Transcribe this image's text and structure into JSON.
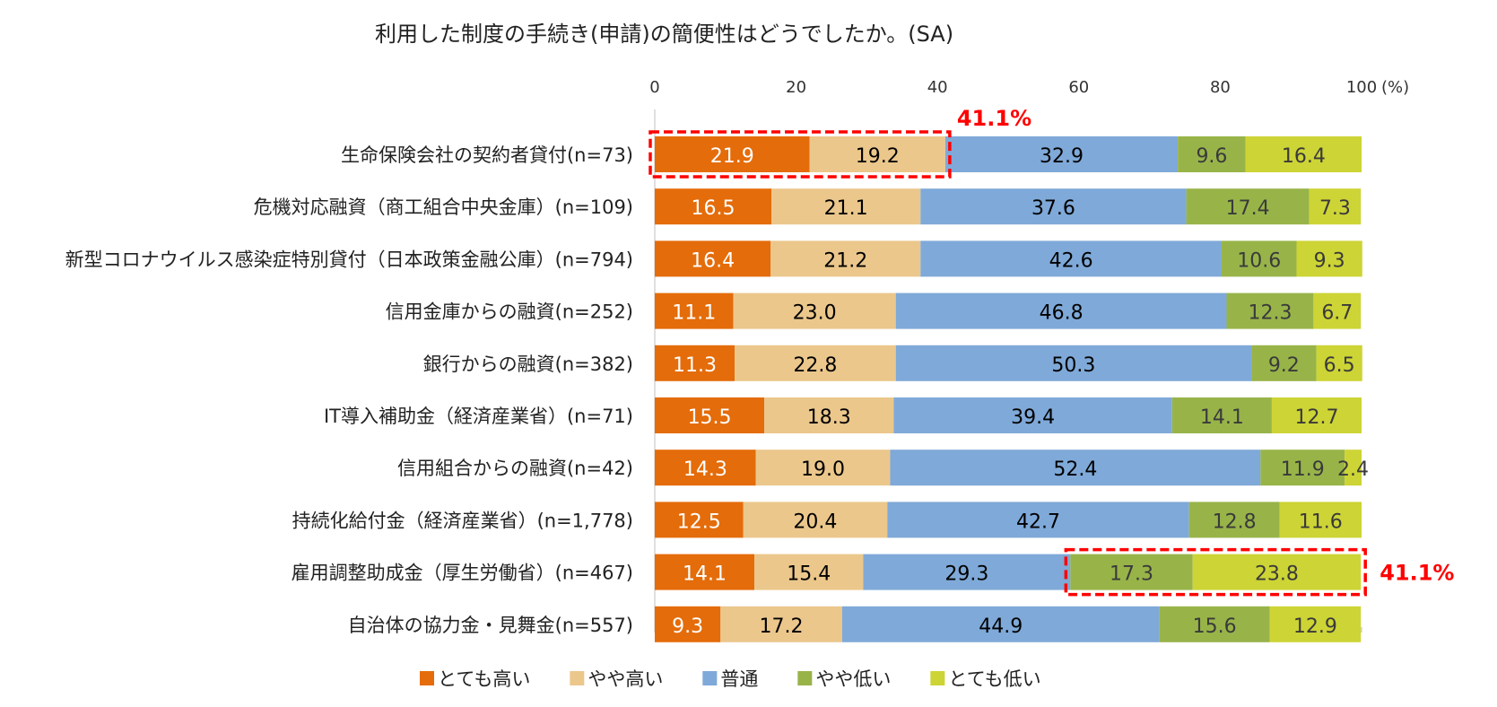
{
  "chart_data": {
    "type": "bar",
    "orientation": "horizontal",
    "stacked": true,
    "title": "利用した制度の手続き(申請)の簡便性はどうでしたか。(SA)",
    "xlim": [
      0,
      100
    ],
    "x_ticks": [
      "0",
      "20",
      "40",
      "60",
      "80",
      "100"
    ],
    "unit_label": "(%)",
    "grid": false,
    "legend_position": "bottom",
    "categories": [
      "生命保険会社の契約者貸付(n=73)",
      "危機対応融資（商工組合中央金庫）(n=109)",
      "新型コロナウイルス感染症特別貸付（日本政策金融公庫）(n=794)",
      "信用金庫からの融資(n=252)",
      "銀行からの融資(n=382)",
      "IT導入補助金（経済産業省）(n=71)",
      "信用組合からの融資(n=42)",
      "持続化給付金（経済産業省）(n=1,778)",
      "雇用調整助成金（厚生労働省）(n=467)",
      "自治体の協力金・見舞金(n=557)"
    ],
    "series": [
      {
        "name": "とても高い",
        "color": "#E46C0A",
        "label_color": "#ffffff",
        "values": [
          21.9,
          16.5,
          16.4,
          11.1,
          11.3,
          15.5,
          14.3,
          12.5,
          14.1,
          9.3
        ]
      },
      {
        "name": "やや高い",
        "color": "#EBC78C",
        "label_color": "#000000",
        "values": [
          19.2,
          21.1,
          21.2,
          23.0,
          22.8,
          18.3,
          19.0,
          20.4,
          15.4,
          17.2
        ]
      },
      {
        "name": "普通",
        "color": "#7FA9D8",
        "label_color": "#000000",
        "values": [
          32.9,
          37.6,
          42.6,
          46.8,
          50.3,
          39.4,
          52.4,
          42.7,
          29.3,
          44.9
        ]
      },
      {
        "name": "やや低い",
        "color": "#98B449",
        "label_color": "#3a3a3a",
        "values": [
          9.6,
          17.4,
          10.6,
          12.3,
          9.2,
          14.1,
          11.9,
          12.8,
          17.3,
          15.6
        ]
      },
      {
        "name": "とても低い",
        "color": "#CDD435",
        "label_color": "#3a3a3a",
        "values": [
          16.4,
          7.3,
          9.3,
          6.7,
          6.5,
          12.7,
          2.4,
          11.6,
          23.8,
          12.9
        ]
      }
    ],
    "value_labels": [
      [
        "21.9",
        "19.2",
        "32.9",
        "9.6",
        "16.4"
      ],
      [
        "16.5",
        "21.1",
        "37.6",
        "17.4",
        "7.3"
      ],
      [
        "16.4",
        "21.2",
        "42.6",
        "10.6",
        "9.3"
      ],
      [
        "11.1",
        "23.0",
        "46.8",
        "12.3",
        "6.7"
      ],
      [
        "11.3",
        "22.8",
        "50.3",
        "9.2",
        "6.5"
      ],
      [
        "15.5",
        "18.3",
        "39.4",
        "14.1",
        "12.7"
      ],
      [
        "14.3",
        "19.0",
        "52.4",
        "11.9",
        "2.4"
      ],
      [
        "12.5",
        "20.4",
        "42.7",
        "12.8",
        "11.6"
      ],
      [
        "14.1",
        "15.4",
        "29.3",
        "17.3",
        "23.8"
      ],
      [
        "9.3",
        "17.2",
        "44.9",
        "15.6",
        "12.9"
      ]
    ],
    "annotations": [
      {
        "row": 0,
        "series": [
          0,
          1
        ],
        "text": "41.1%",
        "color": "#FF0000",
        "side": "right-top"
      },
      {
        "row": 8,
        "series": [
          3,
          4
        ],
        "text": "41.1%",
        "color": "#FF0000",
        "side": "right"
      }
    ]
  }
}
